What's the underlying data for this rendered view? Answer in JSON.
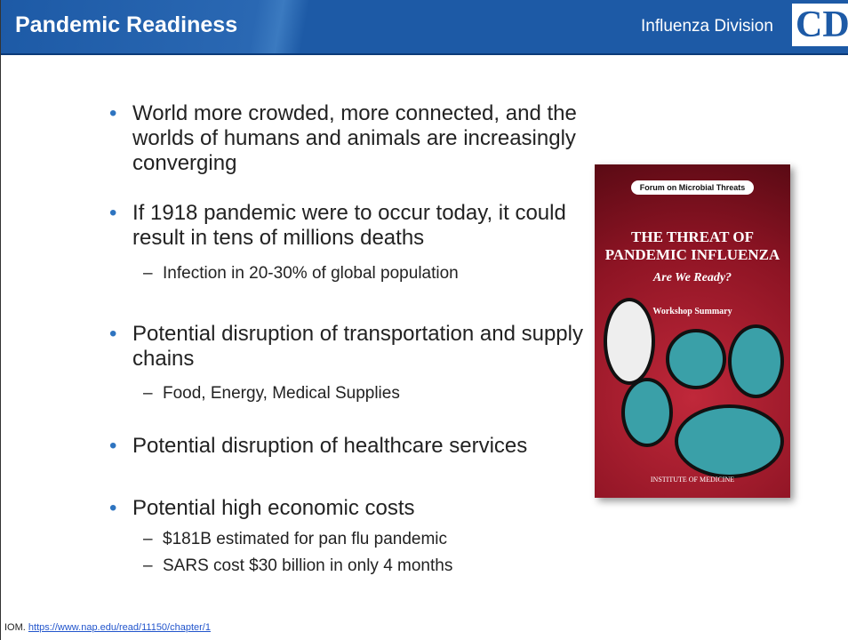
{
  "header": {
    "title": "Pandemic Readiness",
    "division": "Influenza Division",
    "logo": "CDC"
  },
  "bullets": [
    {
      "text": "World more crowded, more connected, and the worlds of humans and animals are increasingly converging",
      "sub": []
    },
    {
      "text": "If 1918 pandemic were to occur today, it could result in tens of millions deaths",
      "sub": [
        "Infection in 20-30% of global population"
      ]
    },
    {
      "text": "Potential disruption of transportation and supply chains",
      "sub": [
        "Food, Energy, Medical Supplies"
      ]
    },
    {
      "text": "Potential disruption of healthcare services",
      "sub": []
    },
    {
      "text": "Potential high economic costs",
      "sub": [
        "$181B estimated for pan flu pandemic",
        "SARS cost $30 billion in only 4 months"
      ]
    }
  ],
  "book": {
    "series": "Forum on Microbial Threats",
    "title": "THE THREAT OF PANDEMIC INFLUENZA",
    "subtitle": "Are We Ready?",
    "kind": "Workshop Summary",
    "publisher": "INSTITUTE OF MEDICINE"
  },
  "footer": {
    "source": "IOM.",
    "link": "https://www.nap.edu/read/11150/chapter/1"
  }
}
